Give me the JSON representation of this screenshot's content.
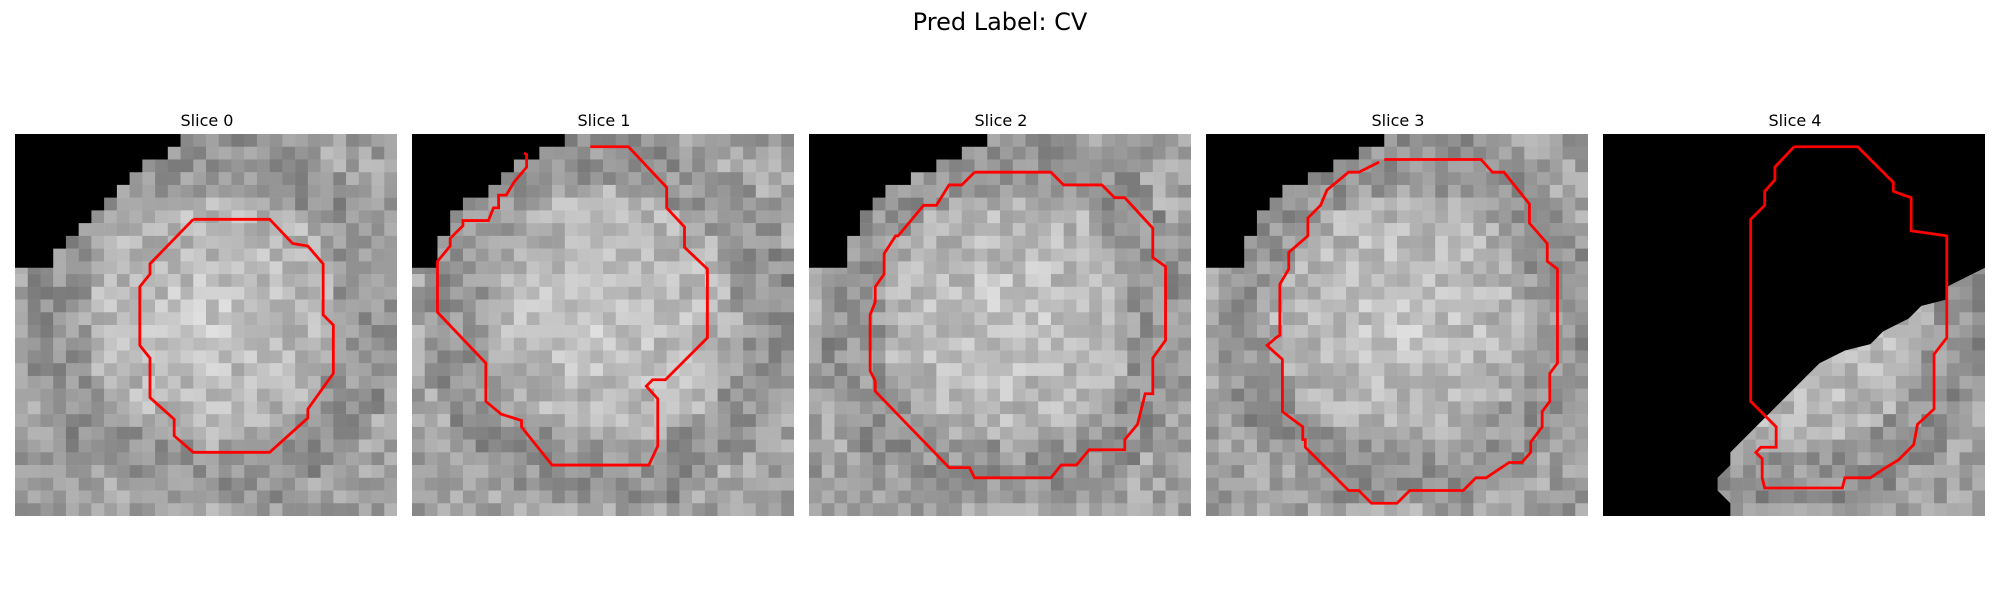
{
  "figure": {
    "title": "Pred Label: CV",
    "contour_color": "#ff0000",
    "panels": [
      {
        "title": "Slice 0"
      },
      {
        "title": "Slice 1"
      },
      {
        "title": "Slice 2"
      },
      {
        "title": "Slice 3"
      },
      {
        "title": "Slice 4"
      }
    ]
  }
}
